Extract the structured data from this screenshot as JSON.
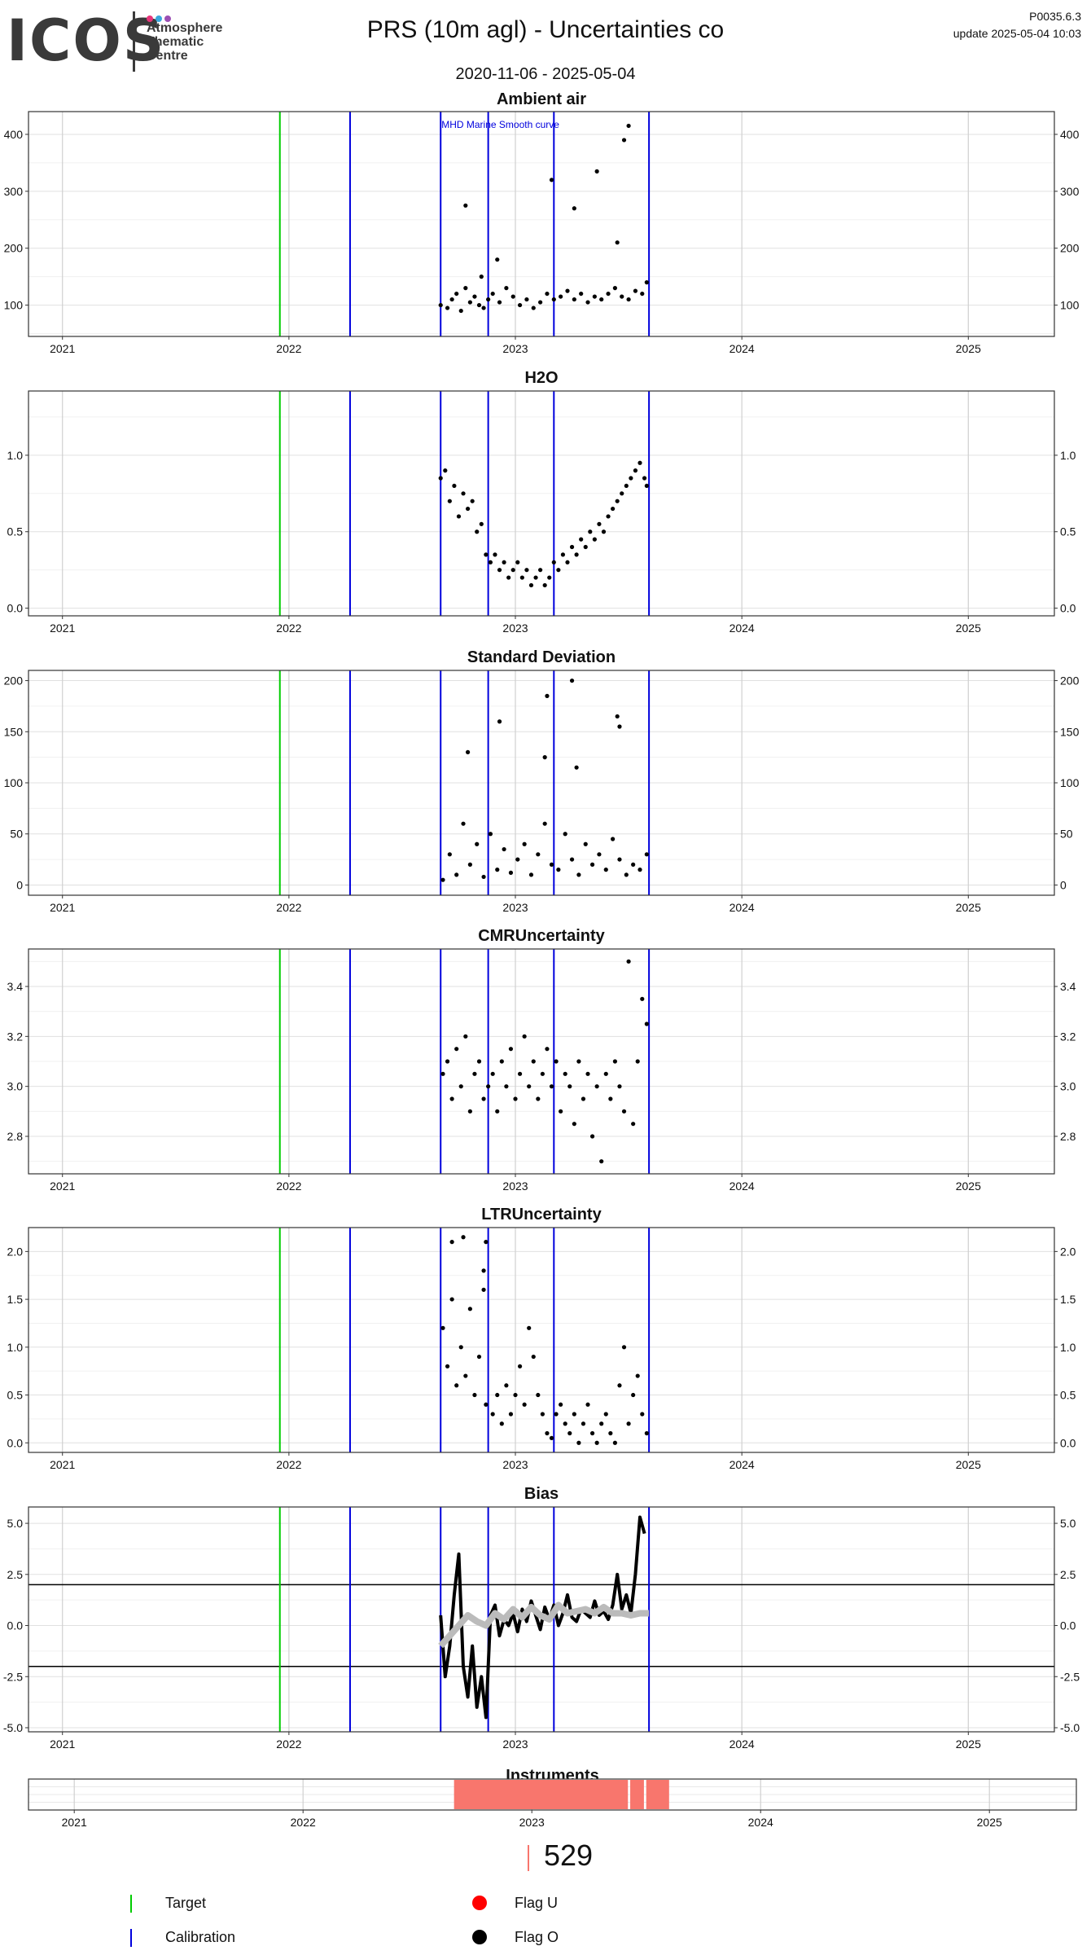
{
  "header": {
    "logo_text": "ICOS",
    "logo_subtext": [
      "Atmosphere",
      "Thematic",
      "Centre"
    ],
    "logo_dot_colors": [
      "#e8357a",
      "#3aa7dd",
      "#9b4fb4"
    ],
    "title": "PRS  (10m agl) - Uncertainties co",
    "date_range": "2020-11-06 - 2025-05-04",
    "version": "P0035.6.3",
    "update": "update  2025-05-04 10:03"
  },
  "colors": {
    "target": "#00cc00",
    "calibration": "#0000dd",
    "points": "#000000",
    "smooth": "#bbbbbb",
    "instrument": "#f8766d",
    "flag_u": "#ff0000",
    "flag_o": "#000000",
    "grid": "#d9d9d9",
    "frame": "#333333"
  },
  "annotations": {
    "smooth_curve_label": "MHD Marine Smooth curve"
  },
  "chart_data": [
    {
      "type": "scatter",
      "title": "Ambient air",
      "xlim": [
        2020.85,
        2025.38
      ],
      "ylim": [
        45,
        440
      ],
      "x_ticks": [
        2021,
        2022,
        2023,
        2024,
        2025
      ],
      "x_tick_labels": [
        "2021",
        "2022",
        "2023",
        "2024",
        "2025"
      ],
      "y_ticks": [
        100,
        200,
        300,
        400
      ],
      "y_tick_labels": [
        "100",
        "200",
        "300",
        "400"
      ],
      "target_lines": [
        2021.96
      ],
      "calibration_lines": [
        2022.27,
        2022.67,
        2022.88,
        2023.17,
        2023.59
      ],
      "points_x": [
        2022.67,
        2022.7,
        2022.72,
        2022.74,
        2022.76,
        2022.78,
        2022.8,
        2022.82,
        2022.84,
        2022.86,
        2022.88,
        2022.9,
        2022.93,
        2022.96,
        2022.99,
        2023.02,
        2023.05,
        2023.08,
        2023.11,
        2023.14,
        2023.17,
        2023.2,
        2023.23,
        2023.26,
        2023.29,
        2023.32,
        2023.35,
        2023.38,
        2023.41,
        2023.44,
        2023.47,
        2023.5,
        2023.53,
        2023.56,
        2023.58,
        2022.78,
        2022.85,
        2022.92,
        2023.16,
        2023.26,
        2023.36,
        2023.45,
        2023.48,
        2023.5
      ],
      "points_y": [
        100,
        95,
        110,
        120,
        90,
        130,
        105,
        115,
        100,
        95,
        110,
        120,
        105,
        130,
        115,
        100,
        110,
        95,
        105,
        120,
        110,
        115,
        125,
        110,
        120,
        105,
        115,
        110,
        120,
        130,
        115,
        110,
        125,
        120,
        140,
        275,
        150,
        180,
        320,
        270,
        335,
        210,
        390,
        415
      ]
    },
    {
      "type": "scatter",
      "title": "H2O",
      "xlim": [
        2020.85,
        2025.38
      ],
      "ylim": [
        -0.05,
        1.42
      ],
      "x_ticks": [
        2021,
        2022,
        2023,
        2024,
        2025
      ],
      "x_tick_labels": [
        "2021",
        "2022",
        "2023",
        "2024",
        "2025"
      ],
      "y_ticks": [
        0.0,
        0.5,
        1.0
      ],
      "y_tick_labels": [
        "0.0",
        "0.5",
        "1.0"
      ],
      "target_lines": [
        2021.96
      ],
      "calibration_lines": [
        2022.27,
        2022.67,
        2022.88,
        2023.17,
        2023.59
      ],
      "points_x": [
        2022.67,
        2022.69,
        2022.71,
        2022.73,
        2022.75,
        2022.77,
        2022.79,
        2022.81,
        2022.83,
        2022.85,
        2022.87,
        2022.89,
        2022.91,
        2022.93,
        2022.95,
        2022.97,
        2022.99,
        2023.01,
        2023.03,
        2023.05,
        2023.07,
        2023.09,
        2023.11,
        2023.13,
        2023.15,
        2023.17,
        2023.19,
        2023.21,
        2023.23,
        2023.25,
        2023.27,
        2023.29,
        2023.31,
        2023.33,
        2023.35,
        2023.37,
        2023.39,
        2023.41,
        2023.43,
        2023.45,
        2023.47,
        2023.49,
        2023.51,
        2023.53,
        2023.55,
        2023.57,
        2023.58
      ],
      "points_y": [
        0.85,
        0.9,
        0.7,
        0.8,
        0.6,
        0.75,
        0.65,
        0.7,
        0.5,
        0.55,
        0.35,
        0.3,
        0.35,
        0.25,
        0.3,
        0.2,
        0.25,
        0.3,
        0.2,
        0.25,
        0.15,
        0.2,
        0.25,
        0.15,
        0.2,
        0.3,
        0.25,
        0.35,
        0.3,
        0.4,
        0.35,
        0.45,
        0.4,
        0.5,
        0.45,
        0.55,
        0.5,
        0.6,
        0.65,
        0.7,
        0.75,
        0.8,
        0.85,
        0.9,
        0.95,
        0.85,
        0.8
      ]
    },
    {
      "type": "scatter",
      "title": "Standard Deviation",
      "xlim": [
        2020.85,
        2025.38
      ],
      "ylim": [
        -10,
        210
      ],
      "x_ticks": [
        2021,
        2022,
        2023,
        2024,
        2025
      ],
      "x_tick_labels": [
        "2021",
        "2022",
        "2023",
        "2024",
        "2025"
      ],
      "y_ticks": [
        0,
        50,
        100,
        150,
        200
      ],
      "y_tick_labels": [
        "0",
        "50",
        "100",
        "150",
        "200"
      ],
      "target_lines": [
        2021.96
      ],
      "calibration_lines": [
        2022.27,
        2022.67,
        2022.88,
        2023.17,
        2023.59
      ],
      "points_x": [
        2022.68,
        2022.71,
        2022.74,
        2022.77,
        2022.8,
        2022.83,
        2022.86,
        2022.89,
        2022.92,
        2022.95,
        2022.98,
        2023.01,
        2023.04,
        2023.07,
        2023.1,
        2023.13,
        2023.16,
        2023.19,
        2023.22,
        2023.25,
        2023.28,
        2023.31,
        2023.34,
        2023.37,
        2023.4,
        2023.43,
        2023.46,
        2023.49,
        2023.52,
        2023.55,
        2023.58,
        2022.79,
        2022.93,
        2023.13,
        2023.14,
        2023.25,
        2023.27,
        2023.45,
        2023.46
      ],
      "points_y": [
        5,
        30,
        10,
        60,
        20,
        40,
        8,
        50,
        15,
        35,
        12,
        25,
        40,
        10,
        30,
        60,
        20,
        15,
        50,
        25,
        10,
        40,
        20,
        30,
        15,
        45,
        25,
        10,
        20,
        15,
        30,
        130,
        160,
        125,
        185,
        200,
        115,
        165,
        155
      ]
    },
    {
      "type": "scatter",
      "title": "CMRUncertainty",
      "xlim": [
        2020.85,
        2025.38
      ],
      "ylim": [
        2.65,
        3.55
      ],
      "x_ticks": [
        2021,
        2022,
        2023,
        2024,
        2025
      ],
      "x_tick_labels": [
        "2021",
        "2022",
        "2023",
        "2024",
        "2025"
      ],
      "y_ticks": [
        2.8,
        3.0,
        3.2,
        3.4
      ],
      "y_tick_labels": [
        "2.8",
        "3.0",
        "3.2",
        "3.4"
      ],
      "target_lines": [
        2021.96
      ],
      "calibration_lines": [
        2022.27,
        2022.67,
        2022.88,
        2023.17,
        2023.59
      ],
      "points_x": [
        2022.68,
        2022.7,
        2022.72,
        2022.74,
        2022.76,
        2022.78,
        2022.8,
        2022.82,
        2022.84,
        2022.86,
        2022.88,
        2022.9,
        2022.92,
        2022.94,
        2022.96,
        2022.98,
        2023.0,
        2023.02,
        2023.04,
        2023.06,
        2023.08,
        2023.1,
        2023.12,
        2023.14,
        2023.16,
        2023.18,
        2023.2,
        2023.22,
        2023.24,
        2023.26,
        2023.28,
        2023.3,
        2023.32,
        2023.34,
        2023.36,
        2023.38,
        2023.4,
        2023.42,
        2023.44,
        2023.46,
        2023.48,
        2023.5,
        2023.52,
        2023.54,
        2023.56,
        2023.58
      ],
      "points_y": [
        3.05,
        3.1,
        2.95,
        3.15,
        3.0,
        3.2,
        2.9,
        3.05,
        3.1,
        2.95,
        3.0,
        3.05,
        2.9,
        3.1,
        3.0,
        3.15,
        2.95,
        3.05,
        3.2,
        3.0,
        3.1,
        2.95,
        3.05,
        3.15,
        3.0,
        3.1,
        2.9,
        3.05,
        3.0,
        2.85,
        3.1,
        2.95,
        3.05,
        2.8,
        3.0,
        2.7,
        3.05,
        2.95,
        3.1,
        3.0,
        2.9,
        3.5,
        2.85,
        3.1,
        3.35,
        3.25
      ]
    },
    {
      "type": "scatter",
      "title": "LTRUncertainty",
      "xlim": [
        2020.85,
        2025.38
      ],
      "ylim": [
        -0.1,
        2.25
      ],
      "x_ticks": [
        2021,
        2022,
        2023,
        2024,
        2025
      ],
      "x_tick_labels": [
        "2021",
        "2022",
        "2023",
        "2024",
        "2025"
      ],
      "y_ticks": [
        0.0,
        0.5,
        1.0,
        1.5,
        2.0
      ],
      "y_tick_labels": [
        "0.0",
        "0.5",
        "1.0",
        "1.5",
        "2.0"
      ],
      "target_lines": [
        2021.96
      ],
      "calibration_lines": [
        2022.27,
        2022.67,
        2022.88,
        2023.17,
        2023.59
      ],
      "points_x": [
        2022.68,
        2022.7,
        2022.72,
        2022.74,
        2022.76,
        2022.78,
        2022.8,
        2022.82,
        2022.84,
        2022.86,
        2022.87,
        2022.9,
        2022.92,
        2022.94,
        2022.96,
        2022.98,
        2023.0,
        2023.02,
        2023.04,
        2023.06,
        2023.08,
        2023.1,
        2023.12,
        2023.14,
        2023.16,
        2023.18,
        2023.2,
        2023.22,
        2023.24,
        2023.26,
        2023.28,
        2023.3,
        2023.32,
        2023.34,
        2023.36,
        2023.38,
        2023.4,
        2023.42,
        2023.44,
        2023.46,
        2023.48,
        2023.5,
        2023.52,
        2023.54,
        2023.56,
        2023.58,
        2022.72,
        2022.77,
        2022.86,
        2022.87
      ],
      "points_y": [
        1.2,
        0.8,
        1.5,
        0.6,
        1.0,
        0.7,
        1.4,
        0.5,
        0.9,
        1.6,
        0.4,
        0.3,
        0.5,
        0.2,
        0.6,
        0.3,
        0.5,
        0.8,
        0.4,
        1.2,
        0.9,
        0.5,
        0.3,
        0.1,
        0.05,
        0.3,
        0.4,
        0.2,
        0.1,
        0.3,
        0.0,
        0.2,
        0.4,
        0.1,
        0.0,
        0.2,
        0.3,
        0.1,
        0.0,
        0.6,
        1.0,
        0.2,
        0.5,
        0.7,
        0.3,
        0.1,
        2.1,
        2.15,
        1.8,
        2.1
      ]
    },
    {
      "type": "line",
      "title": "Bias",
      "xlim": [
        2020.85,
        2025.38
      ],
      "ylim": [
        -5.2,
        5.8
      ],
      "x_ticks": [
        2021,
        2022,
        2023,
        2024,
        2025
      ],
      "x_tick_labels": [
        "2021",
        "2022",
        "2023",
        "2024",
        "2025"
      ],
      "y_ticks": [
        -5.0,
        -2.5,
        0.0,
        2.5,
        5.0
      ],
      "y_tick_labels": [
        "-5.0",
        "-2.5",
        "0.0",
        "2.5",
        "5.0"
      ],
      "target_lines": [
        2021.96
      ],
      "calibration_lines": [
        2022.27,
        2022.67,
        2022.88,
        2023.17,
        2023.59
      ],
      "hlines": [
        2.0,
        -2.0
      ],
      "series": [
        {
          "x": [
            2022.67,
            2022.69,
            2022.71,
            2022.73,
            2022.75,
            2022.77,
            2022.79,
            2022.81,
            2022.83,
            2022.85,
            2022.87,
            2022.89,
            2022.91,
            2022.93,
            2022.95,
            2022.97,
            2022.99,
            2023.01,
            2023.03,
            2023.05,
            2023.07,
            2023.09,
            2023.11,
            2023.13,
            2023.15,
            2023.17,
            2023.19,
            2023.21,
            2023.23,
            2023.25,
            2023.27,
            2023.29,
            2023.31,
            2023.33,
            2023.35,
            2023.37,
            2023.39,
            2023.41,
            2023.43,
            2023.45,
            2023.47,
            2023.49,
            2023.51,
            2023.53,
            2023.55,
            2023.57
          ],
          "y": [
            0.5,
            -2.5,
            -1.0,
            1.5,
            3.5,
            -2.0,
            -3.5,
            -1.0,
            -4.0,
            -2.5,
            -4.5,
            0.5,
            1.0,
            -0.5,
            0.3,
            0.0,
            0.6,
            -0.3,
            0.8,
            0.2,
            1.2,
            0.5,
            -0.2,
            0.9,
            0.3,
            1.0,
            0.0,
            0.6,
            1.5,
            0.4,
            0.2,
            0.8,
            0.6,
            0.4,
            1.2,
            0.5,
            0.7,
            0.3,
            1.0,
            2.5,
            0.8,
            1.5,
            0.6,
            2.5,
            5.3,
            4.5
          ]
        },
        {
          "x": [
            2022.67,
            2022.71,
            2022.75,
            2022.79,
            2022.83,
            2022.87,
            2022.91,
            2022.95,
            2022.99,
            2023.03,
            2023.07,
            2023.11,
            2023.15,
            2023.19,
            2023.23,
            2023.27,
            2023.31,
            2023.35,
            2023.39,
            2023.43,
            2023.47,
            2023.51,
            2023.55,
            2023.59
          ],
          "y": [
            -1.0,
            -0.5,
            0.0,
            0.5,
            0.2,
            0.0,
            0.6,
            0.3,
            0.8,
            0.4,
            0.9,
            0.5,
            0.3,
            1.0,
            0.6,
            0.7,
            0.8,
            0.6,
            0.9,
            0.6,
            0.6,
            0.5,
            0.6,
            0.6
          ]
        }
      ]
    },
    {
      "type": "bar",
      "title": "Instruments",
      "xlim": [
        2020.8,
        2025.38
      ],
      "x_ticks": [
        2021,
        2022,
        2023,
        2024,
        2025
      ],
      "x_tick_labels": [
        "2021",
        "2022",
        "2023",
        "2024",
        "2025"
      ],
      "spans": [
        [
          2022.66,
          2023.42
        ],
        [
          2023.43,
          2023.49
        ],
        [
          2023.5,
          2023.6
        ]
      ],
      "legend_value": "529"
    }
  ],
  "legend": {
    "target": "Target",
    "calibration": "Calibration",
    "flag_u": "Flag U",
    "flag_o": "Flag O"
  }
}
